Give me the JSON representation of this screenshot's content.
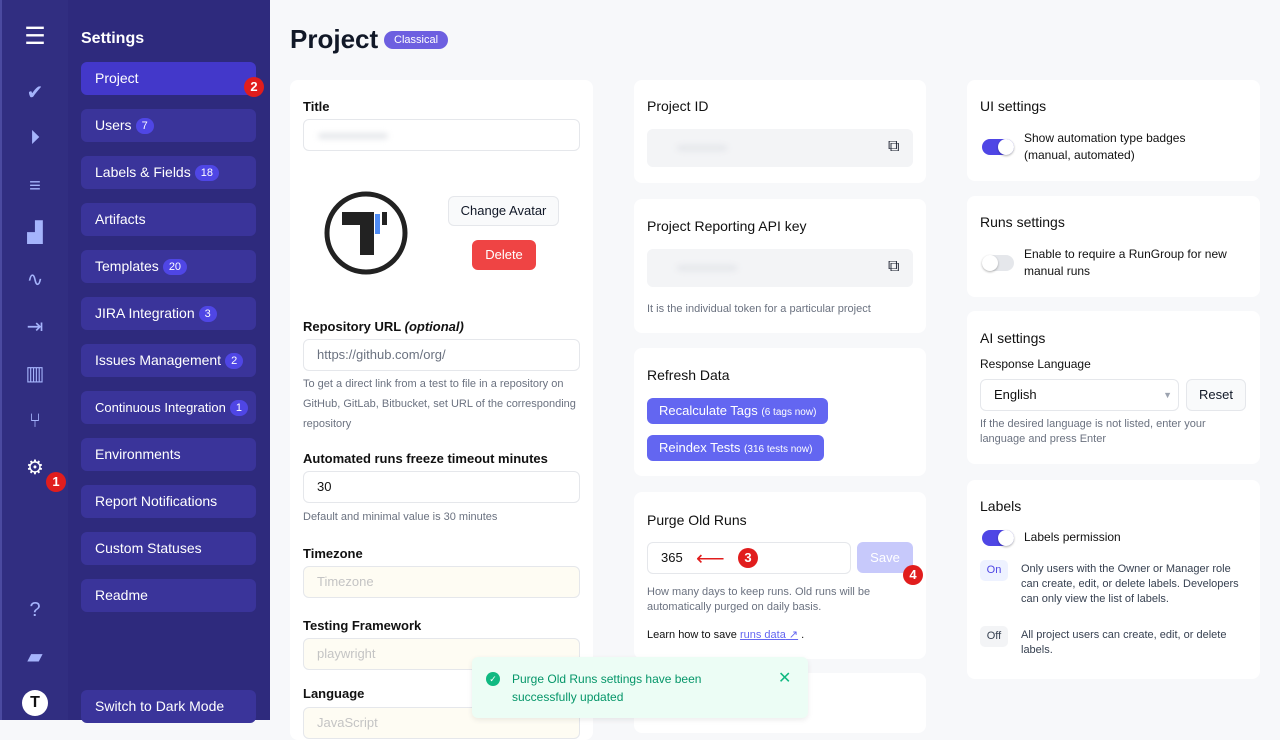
{
  "rail": {
    "icons": [
      "menu-icon",
      "check-icon",
      "play-circle-icon",
      "checklist-icon",
      "steps-icon",
      "pulse-icon",
      "import-icon",
      "analytics-icon",
      "branch-icon",
      "gear-icon",
      "help-icon",
      "folder-icon",
      "logo-icon"
    ]
  },
  "sidebar": {
    "title": "Settings",
    "items": [
      {
        "label": "Project",
        "count": null
      },
      {
        "label": "Users",
        "count": "7"
      },
      {
        "label": "Labels & Fields",
        "count": "18"
      },
      {
        "label": "Artifacts",
        "count": null
      },
      {
        "label": "Templates",
        "count": "20"
      },
      {
        "label": "JIRA Integration",
        "count": "3"
      },
      {
        "label": "Issues Management",
        "count": "2"
      },
      {
        "label": "Continuous Integration",
        "count": "1"
      },
      {
        "label": "Environments",
        "count": null
      },
      {
        "label": "Report Notifications",
        "count": null
      },
      {
        "label": "Custom Statuses",
        "count": null
      },
      {
        "label": "Readme",
        "count": null
      }
    ],
    "dark_mode": "Switch to Dark Mode"
  },
  "markers": [
    "1",
    "2",
    "3",
    "4"
  ],
  "page": {
    "title": "Project",
    "badge": "Classical"
  },
  "project": {
    "title_label": "Title",
    "change_avatar": "Change Avatar",
    "delete": "Delete",
    "repo_label": "Repository URL",
    "repo_optional": "(optional)",
    "repo_value": "https://github.com/org/",
    "repo_help": "To get a direct link from a test to file in a repository on GitHub, GitLab, Bitbucket, set URL of the corresponding repository",
    "freeze_label": "Automated runs freeze timeout minutes",
    "freeze_value": "30",
    "freeze_help": "Default and minimal value is 30 minutes",
    "tz_label": "Timezone",
    "tz_placeholder": "Timezone",
    "fw_label": "Testing Framework",
    "fw_value": "playwright",
    "lang_label": "Language",
    "lang_value": "JavaScript"
  },
  "project_id": {
    "title": "Project ID"
  },
  "api_key": {
    "title": "Project Reporting API key",
    "help": "It is the individual token for a particular project"
  },
  "refresh": {
    "title": "Refresh Data",
    "recalc": "Recalculate Tags",
    "recalc_note": "(6 tags now)",
    "reindex": "Reindex Tests",
    "reindex_note": "(316 tests now)"
  },
  "purge": {
    "title": "Purge Old Runs",
    "value": "365",
    "save": "Save",
    "help": "How many days to keep runs. Old runs will be automatically purged on daily basis.",
    "learn": "Learn how to save",
    "link": "runs data",
    "dot": "."
  },
  "ui": {
    "title": "UI settings",
    "toggle": "Show automation type badges (manual, automated)",
    "on": true
  },
  "runs": {
    "title": "Runs settings",
    "toggle": "Enable to require a RunGroup for new manual runs",
    "on": false
  },
  "ai": {
    "title": "AI settings",
    "lang_label": "Response Language",
    "lang_value": "English",
    "reset": "Reset",
    "help": "If the desired language is not listed, enter your language and press Enter"
  },
  "labels": {
    "title": "Labels",
    "toggle": "Labels permission",
    "on_tag": "On",
    "on_text": "Only users with the Owner or Manager role can create, edit, or delete labels. Developers can only view the list of labels.",
    "off_tag": "Off",
    "off_text": "All project users can create, edit, or delete labels."
  },
  "toast": {
    "message": "Purge Old Runs settings have been successfully updated"
  },
  "colors": {
    "accent": "#4f46e5",
    "danger": "#ef4444",
    "success": "#10b981"
  }
}
